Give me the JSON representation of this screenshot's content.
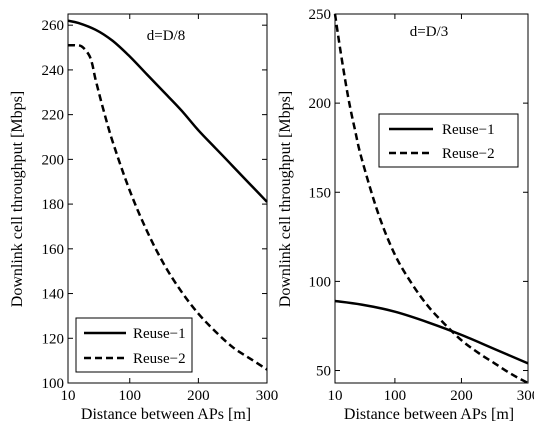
{
  "chart_data": [
    {
      "type": "line",
      "title": "",
      "annotation": "d=D/8",
      "xlabel": "Distance between APs [m]",
      "ylabel": "Downlink cell throughput [Mbps]",
      "xlim": [
        10,
        300
      ],
      "ylim": [
        100,
        265
      ],
      "xticks": [
        10,
        100,
        200,
        300
      ],
      "yticks": [
        100,
        120,
        140,
        160,
        180,
        200,
        220,
        240,
        260
      ],
      "legend_position": "bottom-left",
      "series": [
        {
          "name": "Reuse−1",
          "style": "solid",
          "x": [
            10,
            25,
            50,
            75,
            100,
            125,
            150,
            175,
            200,
            225,
            250,
            275,
            300
          ],
          "y": [
            262,
            261,
            258,
            253,
            246,
            238,
            230,
            222,
            213,
            205,
            197,
            189,
            181
          ]
        },
        {
          "name": "Reuse−2",
          "style": "dashed",
          "x": [
            10,
            20,
            30,
            40,
            45,
            50,
            60,
            75,
            100,
            125,
            150,
            175,
            200,
            225,
            250,
            275,
            300
          ],
          "y": [
            251,
            251,
            250.5,
            247,
            243,
            236,
            224,
            208,
            186,
            168,
            153,
            141,
            131,
            123,
            116,
            111,
            106
          ]
        }
      ]
    },
    {
      "type": "line",
      "title": "",
      "annotation": "d=D/3",
      "xlabel": "Distance between APs [m]",
      "ylabel": "Downlink cell throughput [Mbps]",
      "xlim": [
        10,
        300
      ],
      "ylim": [
        43,
        250
      ],
      "xticks": [
        10,
        100,
        200,
        300
      ],
      "yticks": [
        50,
        100,
        150,
        200,
        250
      ],
      "legend_position": "top-right",
      "series": [
        {
          "name": "Reuse−1",
          "style": "solid",
          "x": [
            10,
            50,
            100,
            150,
            200,
            250,
            300
          ],
          "y": [
            89,
            87,
            83,
            77,
            70,
            62,
            54
          ]
        },
        {
          "name": "Reuse−2",
          "style": "dashed",
          "x": [
            10,
            20,
            30,
            40,
            50,
            75,
            100,
            125,
            150,
            175,
            200,
            225,
            250,
            275,
            300
          ],
          "y": [
            250,
            225,
            203,
            185,
            169,
            138,
            115,
            99,
            86,
            76,
            67,
            60,
            54,
            48,
            43
          ]
        }
      ]
    }
  ]
}
